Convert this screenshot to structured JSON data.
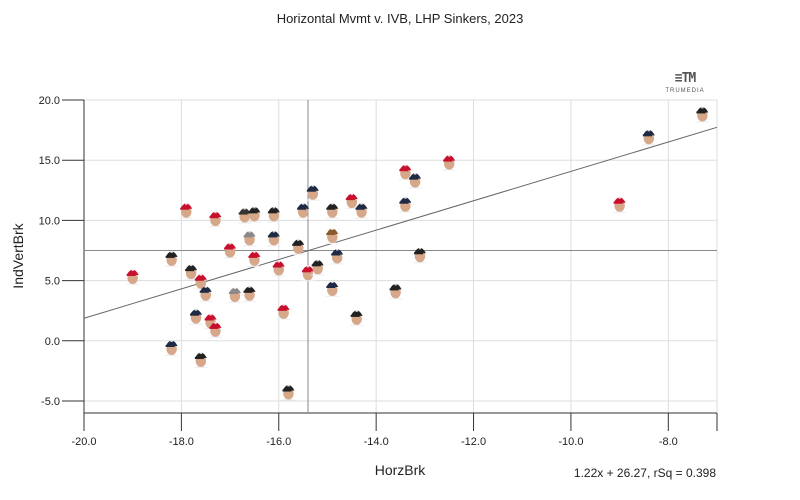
{
  "chart_data": {
    "type": "scatter",
    "title": "Horizontal Mvmt v. IVB, LHP Sinkers, 2023",
    "xlabel": "HorzBrk",
    "ylabel": "IndVertBrk",
    "xlim": [
      -20.0,
      -7.0
    ],
    "ylim": [
      -6.0,
      20.0
    ],
    "xticks": [
      "-20.0",
      "-18.0",
      "-16.0",
      "-14.0",
      "-12.0",
      "-10.0",
      "-8.0"
    ],
    "yticks": [
      "20.0",
      "15.0",
      "10.0",
      "5.0",
      "0.0",
      "-5.0"
    ],
    "grid": true,
    "reference_lines": {
      "x": -15.4,
      "y": 7.5
    },
    "regression": {
      "slope": 1.22,
      "intercept": 26.27,
      "label": "1.22x + 26.27, rSq = 0.398"
    },
    "marker": "player headshot",
    "points": [
      {
        "x": -19.0,
        "y": 5.3,
        "cap": "#c8102e"
      },
      {
        "x": -18.2,
        "y": 6.8,
        "cap": "#222222"
      },
      {
        "x": -18.2,
        "y": -0.6,
        "cap": "#1f2a44"
      },
      {
        "x": -17.9,
        "y": 10.8,
        "cap": "#c8102e"
      },
      {
        "x": -17.8,
        "y": 5.7,
        "cap": "#222222"
      },
      {
        "x": -17.6,
        "y": 4.9,
        "cap": "#c8102e"
      },
      {
        "x": -17.5,
        "y": 3.9,
        "cap": "#1f2a44"
      },
      {
        "x": -17.7,
        "y": 2.0,
        "cap": "#1f2a44"
      },
      {
        "x": -17.6,
        "y": -1.6,
        "cap": "#222222"
      },
      {
        "x": -17.4,
        "y": 1.6,
        "cap": "#c8102e"
      },
      {
        "x": -17.3,
        "y": 10.1,
        "cap": "#c8102e"
      },
      {
        "x": -17.3,
        "y": 0.9,
        "cap": "#c8102e"
      },
      {
        "x": -17.0,
        "y": 7.5,
        "cap": "#c8102e"
      },
      {
        "x": -16.9,
        "y": 3.8,
        "cap": "#8a8a8a"
      },
      {
        "x": -16.7,
        "y": 10.4,
        "cap": "#333333"
      },
      {
        "x": -16.6,
        "y": 8.5,
        "cap": "#8a8a8a"
      },
      {
        "x": -16.6,
        "y": 3.9,
        "cap": "#222222"
      },
      {
        "x": -16.5,
        "y": 10.5,
        "cap": "#222222"
      },
      {
        "x": -16.5,
        "y": 6.8,
        "cap": "#c8102e"
      },
      {
        "x": -16.1,
        "y": 10.5,
        "cap": "#222222"
      },
      {
        "x": -16.1,
        "y": 8.5,
        "cap": "#1f2a44"
      },
      {
        "x": -16.0,
        "y": 6.0,
        "cap": "#c8102e"
      },
      {
        "x": -15.9,
        "y": 2.4,
        "cap": "#c8102e"
      },
      {
        "x": -15.8,
        "y": -4.3,
        "cap": "#222222"
      },
      {
        "x": -15.6,
        "y": 7.8,
        "cap": "#222222"
      },
      {
        "x": -15.5,
        "y": 10.8,
        "cap": "#1f2a44"
      },
      {
        "x": -15.4,
        "y": 5.6,
        "cap": "#c8102e"
      },
      {
        "x": -15.2,
        "y": 6.1,
        "cap": "#222222"
      },
      {
        "x": -15.3,
        "y": 12.3,
        "cap": "#1f2a44"
      },
      {
        "x": -14.9,
        "y": 8.7,
        "cap": "#8a5a2b"
      },
      {
        "x": -14.9,
        "y": 10.8,
        "cap": "#222222"
      },
      {
        "x": -14.8,
        "y": 7.0,
        "cap": "#1f2a44"
      },
      {
        "x": -14.9,
        "y": 4.3,
        "cap": "#1f2a44"
      },
      {
        "x": -14.5,
        "y": 11.6,
        "cap": "#c8102e"
      },
      {
        "x": -14.3,
        "y": 10.8,
        "cap": "#1f2a44"
      },
      {
        "x": -14.4,
        "y": 1.9,
        "cap": "#222222"
      },
      {
        "x": -13.6,
        "y": 4.1,
        "cap": "#222222"
      },
      {
        "x": -13.4,
        "y": 11.3,
        "cap": "#1f2a44"
      },
      {
        "x": -13.4,
        "y": 14.0,
        "cap": "#c8102e"
      },
      {
        "x": -13.2,
        "y": 13.3,
        "cap": "#1f2a44"
      },
      {
        "x": -13.1,
        "y": 7.1,
        "cap": "#222222"
      },
      {
        "x": -12.5,
        "y": 14.8,
        "cap": "#c8102e"
      },
      {
        "x": -9.0,
        "y": 11.3,
        "cap": "#c8102e"
      },
      {
        "x": -8.4,
        "y": 16.9,
        "cap": "#1f2a44"
      },
      {
        "x": -7.3,
        "y": 18.8,
        "cap": "#222222"
      }
    ]
  },
  "branding": {
    "logo_text": "TRUMEDIA",
    "logo_mark": "≡TM"
  }
}
